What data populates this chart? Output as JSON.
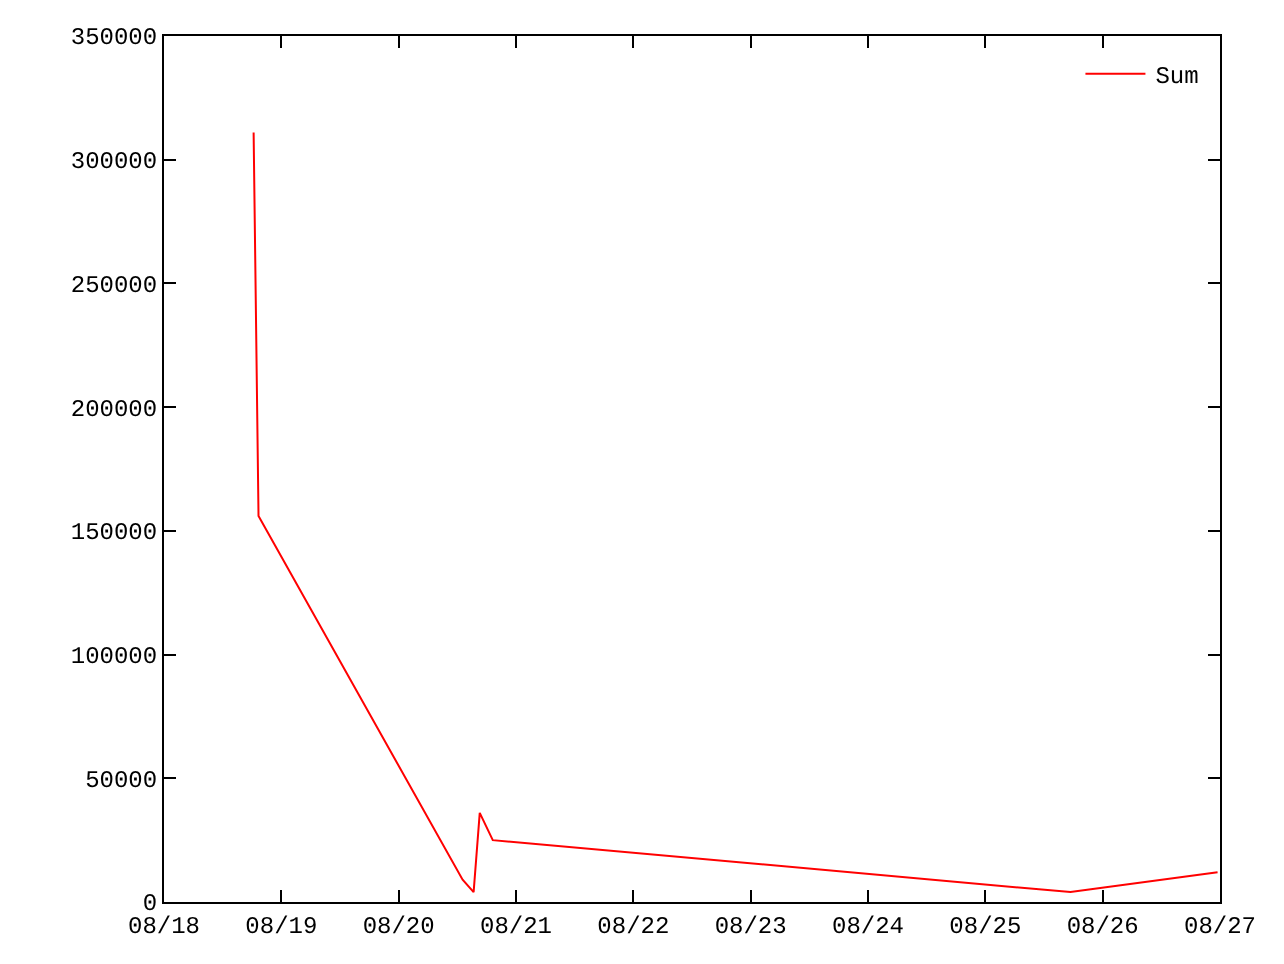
{
  "chart_data": {
    "type": "line",
    "x": [
      "--08-18T18:20",
      "--08-18T19:20",
      "--08-20T13:05",
      "--08-20T15:20",
      "--08-20T16:35",
      "--08-20T19:15",
      "--08-25T17:25",
      "--08-26T23:30"
    ],
    "series": [
      {
        "name": "Sum",
        "color": "#ff0000",
        "values": [
          311000,
          156000,
          9000,
          4000,
          36000,
          25000,
          4000,
          12000
        ]
      }
    ],
    "xlim": [
      "--08-18",
      "--08-27"
    ],
    "xticks": [
      {
        "value": "--08-18",
        "label": "08/18"
      },
      {
        "value": "--08-19",
        "label": "08/19"
      },
      {
        "value": "--08-20",
        "label": "08/20"
      },
      {
        "value": "--08-21",
        "label": "08/21"
      },
      {
        "value": "--08-22",
        "label": "08/22"
      },
      {
        "value": "--08-23",
        "label": "08/23"
      },
      {
        "value": "--08-24",
        "label": "08/24"
      },
      {
        "value": "--08-25",
        "label": "08/25"
      },
      {
        "value": "--08-26",
        "label": "08/26"
      },
      {
        "value": "--08-27",
        "label": "08/27"
      }
    ],
    "ylim": [
      0,
      350000
    ],
    "yticks": [
      0,
      50000,
      100000,
      150000,
      200000,
      250000,
      300000,
      350000
    ],
    "legend": "top right",
    "marker": "none",
    "line_style": "solid"
  }
}
